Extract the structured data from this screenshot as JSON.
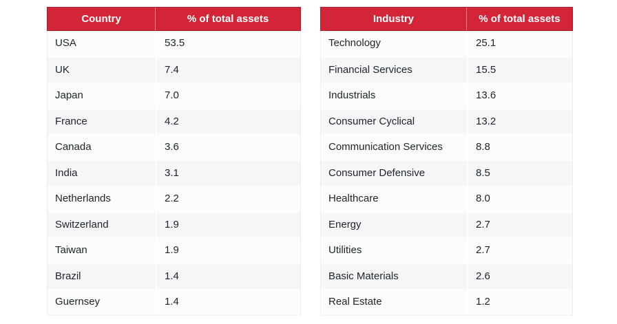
{
  "colors": {
    "header_bg": "#d22638",
    "header_text": "#ffffff",
    "row_odd_bg": "#fbfcfc",
    "row_even_bg": "#f5f6f8",
    "body_text": "#212529",
    "page_bg": "#ffffff"
  },
  "tables": [
    {
      "name": "country-allocation",
      "headers": [
        "Country",
        "% of total assets"
      ],
      "rows": [
        [
          "USA",
          "53.5"
        ],
        [
          "UK",
          "7.4"
        ],
        [
          "Japan",
          "7.0"
        ],
        [
          "France",
          "4.2"
        ],
        [
          "Canada",
          "3.6"
        ],
        [
          "India",
          "3.1"
        ],
        [
          "Netherlands",
          "2.2"
        ],
        [
          "Switzerland",
          "1.9"
        ],
        [
          "Taiwan",
          "1.9"
        ],
        [
          "Brazil",
          "1.4"
        ],
        [
          "Guernsey",
          "1.4"
        ]
      ]
    },
    {
      "name": "industry-allocation",
      "headers": [
        "Industry",
        "% of total assets"
      ],
      "rows": [
        [
          "Technology",
          "25.1"
        ],
        [
          "Financial Services",
          "15.5"
        ],
        [
          "Industrials",
          "13.6"
        ],
        [
          "Consumer Cyclical",
          "13.2"
        ],
        [
          "Communication Services",
          "8.8"
        ],
        [
          "Consumer Defensive",
          "8.5"
        ],
        [
          "Healthcare",
          "8.0"
        ],
        [
          "Energy",
          "2.7"
        ],
        [
          "Utilities",
          "2.7"
        ],
        [
          "Basic Materials",
          "2.6"
        ],
        [
          "Real Estate",
          "1.2"
        ]
      ]
    }
  ],
  "chart_data": [
    {
      "type": "table",
      "title": "Country % of total assets",
      "categories": [
        "USA",
        "UK",
        "Japan",
        "France",
        "Canada",
        "India",
        "Netherlands",
        "Switzerland",
        "Taiwan",
        "Brazil",
        "Guernsey"
      ],
      "values": [
        53.5,
        7.4,
        7.0,
        4.2,
        3.6,
        3.1,
        2.2,
        1.9,
        1.9,
        1.4,
        1.4
      ],
      "columns": [
        "Country",
        "% of total assets"
      ]
    },
    {
      "type": "table",
      "title": "Industry % of total assets",
      "categories": [
        "Technology",
        "Financial Services",
        "Industrials",
        "Consumer Cyclical",
        "Communication Services",
        "Consumer Defensive",
        "Healthcare",
        "Energy",
        "Utilities",
        "Basic Materials",
        "Real Estate"
      ],
      "values": [
        25.1,
        15.5,
        13.6,
        13.2,
        8.8,
        8.5,
        8.0,
        2.7,
        2.7,
        2.6,
        1.2
      ],
      "columns": [
        "Industry",
        "% of total assets"
      ]
    }
  ]
}
